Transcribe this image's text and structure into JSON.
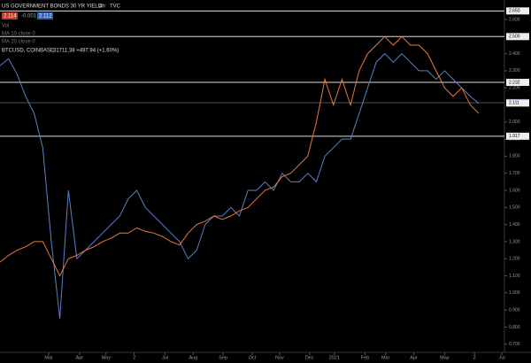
{
  "chart_data": {
    "type": "line",
    "title": "US GOVERNMENT BONDS 30 YR YIELD",
    "interval": "4h",
    "source": "TVC",
    "header_price": "2.114",
    "header_change": "-0.001",
    "header_ask": "2.112",
    "indicators": [
      "Vol",
      "MA 10 close 0",
      "MA 20 close 0"
    ],
    "btc_last": "31711.38  +497.94 (+1.60%)",
    "x": [
      0,
      1,
      2,
      3,
      4,
      5,
      6,
      7,
      8,
      9,
      10,
      11,
      12,
      13,
      14,
      15,
      16,
      17,
      18,
      19,
      20,
      21,
      22,
      23,
      24,
      25,
      26,
      27,
      28,
      29,
      30,
      31,
      32,
      33,
      34,
      35,
      36,
      37,
      38,
      39,
      40,
      41,
      42,
      43,
      44,
      45,
      46,
      47,
      48,
      49,
      50,
      51,
      52,
      53,
      54,
      55,
      56
    ],
    "series": [
      {
        "name": "US GOVERNMENT BONDS 30 YR YIELD",
        "color": "#5b7fc4",
        "values": [
          2.33,
          2.37,
          2.28,
          2.15,
          2.05,
          1.85,
          1.3,
          0.85,
          1.6,
          1.2,
          1.25,
          1.3,
          1.35,
          1.4,
          1.45,
          1.55,
          1.6,
          1.5,
          1.45,
          1.4,
          1.35,
          1.3,
          1.2,
          1.25,
          1.4,
          1.45,
          1.45,
          1.5,
          1.45,
          1.6,
          1.6,
          1.65,
          1.6,
          1.7,
          1.65,
          1.65,
          1.7,
          1.65,
          1.8,
          1.85,
          1.9,
          1.9,
          2.05,
          2.2,
          2.35,
          2.4,
          2.35,
          2.4,
          2.35,
          2.3,
          2.3,
          2.25,
          2.3,
          2.25,
          2.2,
          2.15,
          2.11
        ]
      },
      {
        "name": "BTCUSD, COINBASE",
        "color": "#e8773a",
        "values": [
          1.18,
          1.22,
          1.25,
          1.27,
          1.3,
          1.3,
          1.2,
          1.1,
          1.2,
          1.22,
          1.25,
          1.27,
          1.3,
          1.32,
          1.35,
          1.35,
          1.38,
          1.36,
          1.35,
          1.33,
          1.3,
          1.28,
          1.35,
          1.4,
          1.42,
          1.45,
          1.43,
          1.45,
          1.48,
          1.5,
          1.55,
          1.6,
          1.62,
          1.68,
          1.7,
          1.75,
          1.8,
          2.0,
          2.25,
          2.1,
          2.25,
          2.1,
          2.3,
          2.4,
          2.45,
          2.5,
          2.45,
          2.5,
          2.45,
          2.45,
          2.4,
          2.3,
          2.2,
          2.15,
          2.2,
          2.1,
          2.05
        ]
      }
    ],
    "xlim": [
      0,
      59
    ],
    "xticks": [
      {
        "value": 5.7,
        "label": "Mar"
      },
      {
        "value": 9.3,
        "label": "Apr"
      },
      {
        "value": 12.4,
        "label": "May"
      },
      {
        "value": 15.7,
        "label": "2"
      },
      {
        "value": 19.3,
        "label": "Jul"
      },
      {
        "value": 22.6,
        "label": "Aug"
      },
      {
        "value": 26.1,
        "label": "Sep"
      },
      {
        "value": 29.5,
        "label": "Oct"
      },
      {
        "value": 32.7,
        "label": "Nov"
      },
      {
        "value": 36.2,
        "label": "Dec"
      },
      {
        "value": 39.1,
        "label": "2021"
      },
      {
        "value": 42.7,
        "label": "Feb"
      },
      {
        "value": 45.1,
        "label": "Mar"
      },
      {
        "value": 48.4,
        "label": "Apr"
      },
      {
        "value": 52,
        "label": "May"
      },
      {
        "value": 55.5,
        "label": "2"
      },
      {
        "value": 58.7,
        "label": "Jul"
      }
    ],
    "ylim": [
      0.652,
      2.714
    ],
    "yticks": [
      {
        "value": 2.6,
        "label": "2.600"
      },
      {
        "value": 2.4,
        "label": "2.400"
      },
      {
        "value": 2.3,
        "label": "2.300"
      },
      {
        "value": 2.2,
        "label": "2.200"
      },
      {
        "value": 2.0,
        "label": "2.000"
      },
      {
        "value": 1.9,
        "label": "1.900"
      },
      {
        "value": 1.8,
        "label": "1.800"
      },
      {
        "value": 1.7,
        "label": "1.700"
      },
      {
        "value": 1.6,
        "label": "1.600"
      },
      {
        "value": 1.5,
        "label": "1.500"
      },
      {
        "value": 1.4,
        "label": "1.400"
      },
      {
        "value": 1.3,
        "label": "1.300"
      },
      {
        "value": 1.2,
        "label": "1.200"
      },
      {
        "value": 1.1,
        "label": "1.100"
      },
      {
        "value": 1.0,
        "label": "1.000"
      },
      {
        "value": 0.9,
        "label": "0.900"
      },
      {
        "value": 0.8,
        "label": "0.800"
      },
      {
        "value": 0.7,
        "label": "0.700"
      }
    ],
    "levels": [
      {
        "value": 2.65,
        "label": "2.650"
      },
      {
        "value": 2.5,
        "label": "2.500"
      },
      {
        "value": 2.232,
        "label": "2.232"
      },
      {
        "value": 2.114,
        "label": "2.114"
      },
      {
        "value": 2.111,
        "label": "2.111"
      },
      {
        "value": 1.917,
        "label": "1.917"
      }
    ]
  }
}
